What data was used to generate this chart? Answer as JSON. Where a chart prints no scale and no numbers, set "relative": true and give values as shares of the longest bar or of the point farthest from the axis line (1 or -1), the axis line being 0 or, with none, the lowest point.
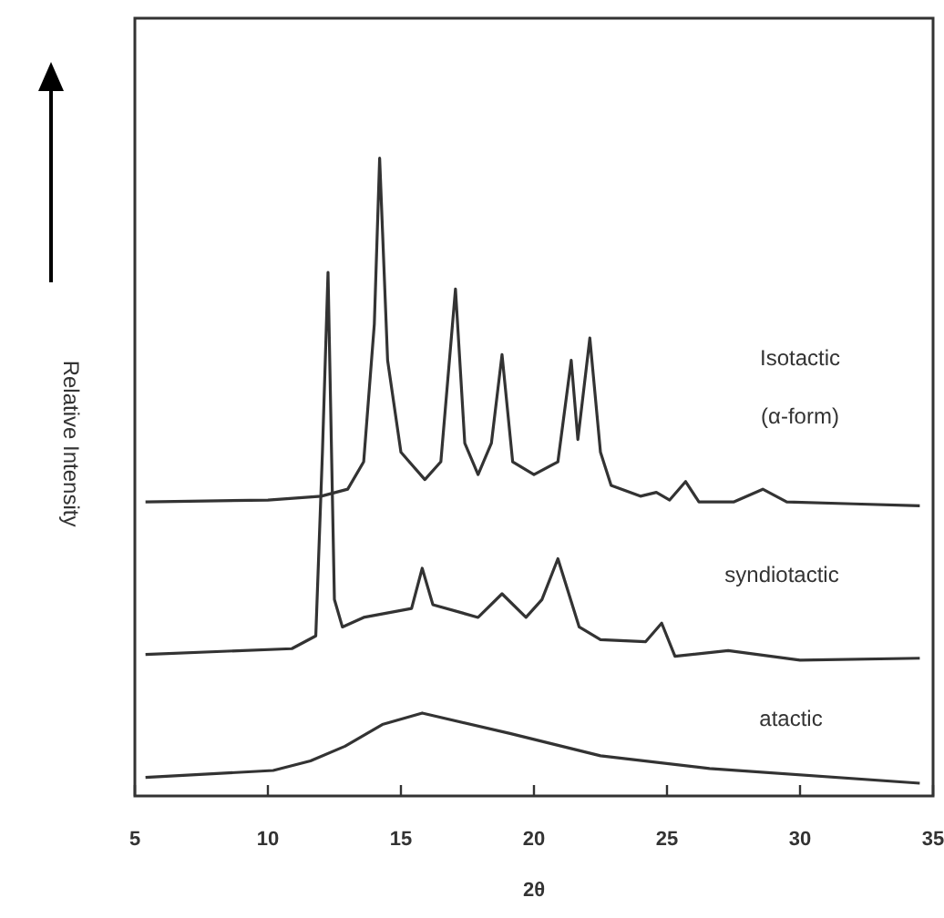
{
  "chart_data": {
    "type": "line",
    "relative": true,
    "xlabel": "2θ",
    "ylabel": "Relative Intensity",
    "xlim": [
      5,
      35
    ],
    "xticks": [
      5,
      10,
      15,
      20,
      25,
      30,
      35
    ],
    "grid": false,
    "line_style": "solid",
    "series": [
      {
        "name": "Isotactic (α-form)",
        "color": "#333333",
        "x": [
          5.4,
          10,
          12,
          13,
          13.6,
          14.0,
          14.2,
          14.5,
          15,
          15.9,
          16.5,
          17.05,
          17.4,
          17.9,
          18.4,
          18.8,
          19.2,
          20,
          20.9,
          21.4,
          21.65,
          22.1,
          22.5,
          22.9,
          24,
          24.6,
          25.1,
          25.7,
          26.2,
          27.5,
          28.6,
          29.5,
          32,
          34.5
        ],
        "values": [
          0.461,
          0.464,
          0.47,
          0.481,
          0.524,
          0.74,
          1.0,
          0.683,
          0.539,
          0.496,
          0.524,
          0.795,
          0.553,
          0.504,
          0.553,
          0.692,
          0.524,
          0.504,
          0.524,
          0.683,
          0.559,
          0.718,
          0.539,
          0.487,
          0.47,
          0.476,
          0.464,
          0.493,
          0.461,
          0.461,
          0.481,
          0.461,
          0.458,
          0.455
        ]
      },
      {
        "name": "syndiotactic",
        "color": "#333333",
        "x": [
          5.4,
          10.9,
          11.8,
          12.05,
          12.26,
          12.5,
          12.8,
          13.6,
          15.4,
          15.8,
          16.2,
          17.9,
          18.8,
          19.7,
          20.3,
          20.9,
          21.7,
          22.5,
          24.2,
          24.8,
          25.3,
          27.3,
          30,
          34.5
        ],
        "values": [
          0.222,
          0.231,
          0.251,
          0.539,
          0.821,
          0.308,
          0.265,
          0.28,
          0.294,
          0.357,
          0.3,
          0.28,
          0.317,
          0.28,
          0.308,
          0.372,
          0.265,
          0.245,
          0.242,
          0.271,
          0.219,
          0.228,
          0.213,
          0.216
        ]
      },
      {
        "name": "atactic",
        "color": "#333333",
        "x": [
          5.4,
          10.2,
          11.6,
          12.9,
          14.3,
          15.8,
          19.1,
          22.5,
          26.6,
          34.5
        ],
        "values": [
          0.029,
          0.04,
          0.055,
          0.078,
          0.112,
          0.13,
          0.098,
          0.063,
          0.043,
          0.02
        ]
      }
    ]
  }
}
